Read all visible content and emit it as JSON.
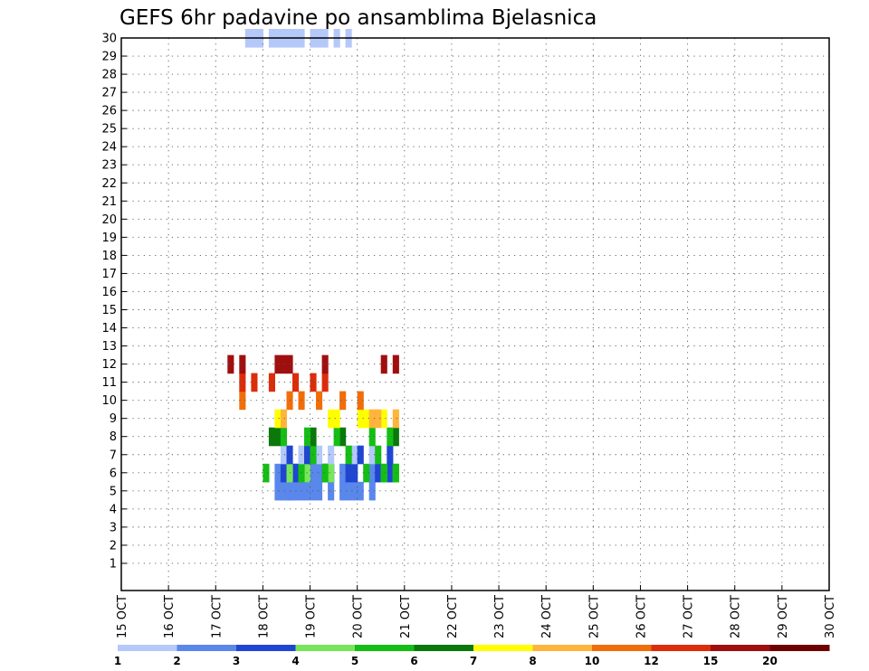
{
  "chart_data": {
    "type": "heatmap",
    "title": "GEFS 6hr padavine po ansamblima Bjelasnica",
    "y_ticks": [
      "1",
      "2",
      "3",
      "4",
      "5",
      "6",
      "7",
      "8",
      "9",
      "10",
      "11",
      "12",
      "13",
      "14",
      "15",
      "16",
      "17",
      "18",
      "19",
      "20",
      "21",
      "22",
      "23",
      "24",
      "25",
      "26",
      "27",
      "28",
      "29",
      "30"
    ],
    "x_ticks": [
      "15 OCT",
      "16 OCT",
      "17 OCT",
      "18 OCT",
      "19 OCT",
      "20 OCT",
      "21 OCT",
      "22 OCT",
      "23 OCT",
      "24 OCT",
      "25 OCT",
      "26 OCT",
      "27 OCT",
      "28 OCT",
      "29 OCT",
      "30 OCT"
    ],
    "legend_labels": [
      "1",
      "2",
      "3",
      "4",
      "5",
      "6",
      "7",
      "8",
      "10",
      "12",
      "15",
      "20"
    ],
    "colors": [
      "#b4c8fa",
      "#5a87eb",
      "#1e46d2",
      "#78e65a",
      "#14be14",
      "#0a780a",
      "#ffff00",
      "#ffb43c",
      "#f06e0a",
      "#dc2d0a",
      "#a00f0f",
      "#6e0000"
    ],
    "grid": true,
    "cells": [
      [
        0,
        30,
        5
      ],
      [
        0,
        30,
        6
      ],
      [
        0,
        30,
        7
      ],
      [
        0,
        30,
        9
      ],
      [
        0,
        30,
        10
      ],
      [
        0,
        30,
        11
      ],
      [
        0,
        30,
        12
      ],
      [
        0,
        30,
        13
      ],
      [
        0,
        30,
        14
      ],
      [
        0,
        30,
        16
      ],
      [
        0,
        30,
        17
      ],
      [
        0,
        30,
        18
      ],
      [
        0,
        30,
        20
      ],
      [
        0,
        30,
        22
      ],
      [
        1,
        5,
        10
      ],
      [
        1,
        5,
        11
      ],
      [
        1,
        5,
        12
      ],
      [
        1,
        5,
        12
      ],
      [
        1,
        5,
        13
      ],
      [
        1,
        5,
        14
      ],
      [
        1,
        5,
        15
      ],
      [
        1,
        5,
        16
      ],
      [
        1,
        5,
        17
      ],
      [
        1,
        5,
        19
      ],
      [
        1,
        5,
        21
      ],
      [
        1,
        5,
        22
      ],
      [
        1,
        5,
        23
      ],
      [
        1,
        5,
        24
      ],
      [
        1,
        5,
        26
      ],
      [
        1,
        6,
        10
      ],
      [
        1,
        6,
        11
      ],
      [
        1,
        6,
        11
      ],
      [
        1,
        6,
        13
      ],
      [
        1,
        6,
        14
      ],
      [
        1,
        6,
        16
      ],
      [
        1,
        6,
        17
      ],
      [
        1,
        6,
        18
      ],
      [
        1,
        6,
        19
      ],
      [
        1,
        6,
        21
      ],
      [
        1,
        6,
        22
      ],
      [
        1,
        6,
        23
      ],
      [
        1,
        6,
        26
      ],
      [
        1,
        6,
        29
      ],
      [
        2,
        6,
        11
      ],
      [
        2,
        6,
        13
      ],
      [
        2,
        6,
        15
      ],
      [
        2,
        6,
        15
      ],
      [
        2,
        6,
        18
      ],
      [
        2,
        6,
        19
      ],
      [
        2,
        6,
        22
      ],
      [
        2,
        6,
        23
      ],
      [
        2,
        6,
        27
      ],
      [
        2,
        6,
        29
      ],
      [
        3,
        6,
        12
      ],
      [
        3,
        6,
        15
      ],
      [
        3,
        6,
        19
      ],
      [
        3,
        6,
        28
      ],
      [
        3,
        6,
        30
      ],
      [
        4,
        6,
        8
      ],
      [
        4,
        6,
        14
      ],
      [
        4,
        6,
        18
      ],
      [
        4,
        6,
        25
      ],
      [
        4,
        6,
        28
      ],
      [
        4,
        6,
        30
      ],
      [
        0,
        7,
        11
      ],
      [
        0,
        7,
        14
      ],
      [
        0,
        7,
        15
      ],
      [
        0,
        7,
        17
      ],
      [
        0,
        7,
        19
      ],
      [
        0,
        7,
        23
      ],
      [
        0,
        7,
        26
      ],
      [
        2,
        7,
        12
      ],
      [
        2,
        7,
        15
      ],
      [
        2,
        7,
        24
      ],
      [
        2,
        7,
        29
      ],
      [
        4,
        7,
        16
      ],
      [
        4,
        7,
        22
      ],
      [
        4,
        7,
        27
      ],
      [
        5,
        8,
        9
      ],
      [
        5,
        8,
        10
      ],
      [
        5,
        8,
        16
      ],
      [
        5,
        8,
        21
      ],
      [
        5,
        8,
        30
      ],
      [
        4,
        8,
        11
      ],
      [
        4,
        8,
        15
      ],
      [
        4,
        8,
        20
      ],
      [
        4,
        8,
        26
      ],
      [
        4,
        8,
        29
      ],
      [
        6,
        9,
        10
      ],
      [
        6,
        9,
        19
      ],
      [
        6,
        9,
        20
      ],
      [
        6,
        9,
        24
      ],
      [
        6,
        9,
        25
      ],
      [
        6,
        9,
        28
      ],
      [
        7,
        9,
        11
      ],
      [
        7,
        9,
        26
      ],
      [
        7,
        9,
        27
      ],
      [
        7,
        9,
        30
      ],
      [
        8,
        10,
        4
      ],
      [
        8,
        10,
        12
      ],
      [
        8,
        10,
        14
      ],
      [
        8,
        10,
        17
      ],
      [
        8,
        10,
        21
      ],
      [
        8,
        10,
        24
      ],
      [
        9,
        11,
        4
      ],
      [
        9,
        11,
        6
      ],
      [
        9,
        11,
        9
      ],
      [
        9,
        11,
        13
      ],
      [
        9,
        11,
        16
      ],
      [
        9,
        11,
        18
      ],
      [
        10,
        12,
        2
      ],
      [
        10,
        12,
        4
      ],
      [
        10,
        12,
        10
      ],
      [
        10,
        12,
        11
      ],
      [
        10,
        12,
        12
      ],
      [
        10,
        12,
        18
      ],
      [
        10,
        12,
        28
      ],
      [
        10,
        12,
        30
      ]
    ]
  }
}
